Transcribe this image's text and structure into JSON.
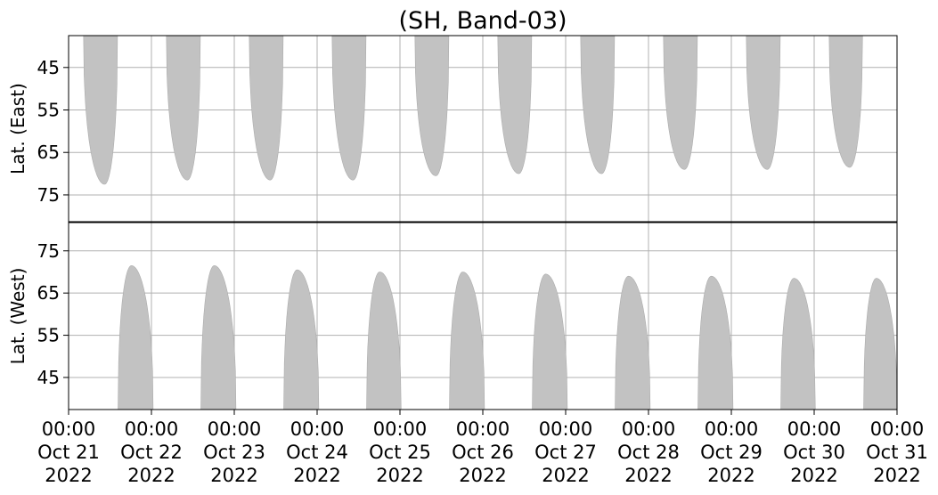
{
  "chart_data": [
    {
      "type": "range",
      "title": "(SH, Band-03)",
      "ylabel": "Lat. (East)",
      "ylim": [
        81.3,
        37.5
      ],
      "yticks": [
        45,
        55,
        65,
        75
      ],
      "grid": true,
      "color": "#c2c2c2",
      "x_start": [
        "2022-10-21T04:20",
        "2022-10-22T04:20",
        "2022-10-23T04:20",
        "2022-10-24T04:20",
        "2022-10-25T04:20",
        "2022-10-26T04:20",
        "2022-10-27T04:20",
        "2022-10-28T04:20",
        "2022-10-29T04:20",
        "2022-10-30T04:20"
      ],
      "x_end": [
        "2022-10-21T14:10",
        "2022-10-22T14:10",
        "2022-10-23T14:10",
        "2022-10-24T14:10",
        "2022-10-25T14:10",
        "2022-10-26T14:10",
        "2022-10-27T14:10",
        "2022-10-28T14:10",
        "2022-10-29T14:10",
        "2022-10-30T14:00"
      ],
      "values": [
        72.5,
        71.5,
        71.5,
        71.5,
        70.5,
        70,
        70,
        69,
        69,
        68.5
      ]
    },
    {
      "type": "range",
      "ylabel": "Lat. (West)",
      "ylim": [
        37.4,
        81.7
      ],
      "yticks": [
        45,
        55,
        65,
        75
      ],
      "grid": true,
      "color": "#c2c2c2",
      "xlim": [
        "2022-10-21T00:00",
        "2022-10-31T00:00"
      ],
      "xticks": [
        {
          "value": "2022-10-21T00:00",
          "label": "00:00\nOct 21\n2022"
        },
        {
          "value": "2022-10-22T00:00",
          "label": "00:00\nOct 22\n2022"
        },
        {
          "value": "2022-10-23T00:00",
          "label": "00:00\nOct 23\n2022"
        },
        {
          "value": "2022-10-24T00:00",
          "label": "00:00\nOct 24\n2022"
        },
        {
          "value": "2022-10-25T00:00",
          "label": "00:00\nOct 25\n2022"
        },
        {
          "value": "2022-10-26T00:00",
          "label": "00:00\nOct 26\n2022"
        },
        {
          "value": "2022-10-27T00:00",
          "label": "00:00\nOct 27\n2022"
        },
        {
          "value": "2022-10-28T00:00",
          "label": "00:00\nOct 28\n2022"
        },
        {
          "value": "2022-10-29T00:00",
          "label": "00:00\nOct 29\n2022"
        },
        {
          "value": "2022-10-30T00:00",
          "label": "00:00\nOct 30\n2022"
        },
        {
          "value": "2022-10-31T00:00",
          "label": "00:00\nOct 31\n2022"
        }
      ],
      "x_start": [
        "2022-10-21T14:20",
        "2022-10-22T14:20",
        "2022-10-23T14:20",
        "2022-10-24T14:20",
        "2022-10-25T14:20",
        "2022-10-26T14:20",
        "2022-10-27T14:20",
        "2022-10-28T14:20",
        "2022-10-29T14:20",
        "2022-10-30T14:20"
      ],
      "x_end": [
        "2022-10-22T00:30",
        "2022-10-23T00:30",
        "2022-10-24T00:30",
        "2022-10-25T00:20",
        "2022-10-26T00:30",
        "2022-10-27T00:30",
        "2022-10-28T00:30",
        "2022-10-29T00:30",
        "2022-10-30T00:20",
        "2022-10-31T00:00"
      ],
      "values": [
        71.5,
        71.5,
        70.5,
        70,
        70,
        69.5,
        69,
        69,
        68.5,
        68.5
      ]
    }
  ]
}
